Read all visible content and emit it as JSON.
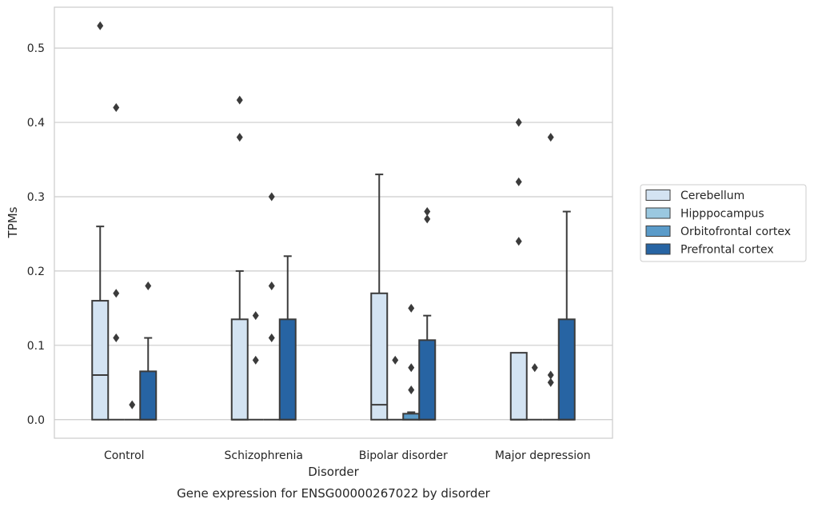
{
  "caption": "Gene expression for ENSG00000267022 by disorder",
  "chart_data": {
    "type": "box",
    "title": "",
    "xlabel": "Disorder",
    "ylabel": "TPMs",
    "ylim": [
      -0.025,
      0.555
    ],
    "yticks": [
      0.0,
      0.1,
      0.2,
      0.3,
      0.4,
      0.5
    ],
    "ytick_labels": [
      "0.0",
      "0.1",
      "0.2",
      "0.3",
      "0.4",
      "0.5"
    ],
    "grid": "horizontal",
    "legend_position": "right",
    "categories": [
      "Control",
      "Schizophrenia",
      "Bipolar disorder",
      "Major depression"
    ],
    "series": [
      {
        "name": "Cerebellum",
        "color": "#d3e3f2",
        "boxes": [
          {
            "q1": 0.0,
            "median": 0.06,
            "q3": 0.16,
            "whislo": 0.0,
            "whishi": 0.26,
            "fliers": [
              0.53
            ]
          },
          {
            "q1": 0.0,
            "median": 0.0,
            "q3": 0.135,
            "whislo": 0.0,
            "whishi": 0.2,
            "fliers": [
              0.38,
              0.43
            ]
          },
          {
            "q1": 0.0,
            "median": 0.02,
            "q3": 0.17,
            "whislo": 0.0,
            "whishi": 0.33,
            "fliers": []
          },
          {
            "q1": 0.0,
            "median": 0.0,
            "q3": 0.09,
            "whislo": 0.0,
            "whishi": 0.09,
            "fliers": [
              0.24,
              0.32,
              0.4
            ]
          }
        ]
      },
      {
        "name": "Hipppocampus",
        "color": "#9ac8e0",
        "boxes": [
          {
            "q1": 0.0,
            "median": 0.0,
            "q3": 0.0,
            "whislo": 0.0,
            "whishi": 0.0,
            "fliers": [
              0.11,
              0.17,
              0.42
            ]
          },
          {
            "q1": 0.0,
            "median": 0.0,
            "q3": 0.0,
            "whislo": 0.0,
            "whishi": 0.0,
            "fliers": [
              0.08,
              0.14
            ]
          },
          {
            "q1": 0.0,
            "median": 0.0,
            "q3": 0.0,
            "whislo": 0.0,
            "whishi": 0.0,
            "fliers": [
              0.08
            ]
          },
          {
            "q1": 0.0,
            "median": 0.0,
            "q3": 0.0,
            "whislo": 0.0,
            "whishi": 0.0,
            "fliers": [
              0.07
            ]
          }
        ]
      },
      {
        "name": "Orbitofrontal cortex",
        "color": "#5a9bc9",
        "boxes": [
          {
            "q1": 0.0,
            "median": 0.0,
            "q3": 0.0,
            "whislo": 0.0,
            "whishi": 0.0,
            "fliers": [
              0.02
            ]
          },
          {
            "q1": 0.0,
            "median": 0.0,
            "q3": 0.0,
            "whislo": 0.0,
            "whishi": 0.0,
            "fliers": [
              0.11,
              0.18,
              0.3
            ]
          },
          {
            "q1": 0.0,
            "median": 0.0,
            "q3": 0.008,
            "whislo": 0.0,
            "whishi": 0.01,
            "fliers": [
              0.04,
              0.07,
              0.15
            ]
          },
          {
            "q1": 0.0,
            "median": 0.0,
            "q3": 0.0,
            "whislo": 0.0,
            "whishi": 0.0,
            "fliers": [
              0.05,
              0.06,
              0.38
            ]
          }
        ]
      },
      {
        "name": "Prefrontal cortex",
        "color": "#2764a3",
        "boxes": [
          {
            "q1": 0.0,
            "median": 0.0,
            "q3": 0.065,
            "whislo": 0.0,
            "whishi": 0.11,
            "fliers": [
              0.18
            ]
          },
          {
            "q1": 0.0,
            "median": 0.0,
            "q3": 0.135,
            "whislo": 0.0,
            "whishi": 0.22,
            "fliers": []
          },
          {
            "q1": 0.0,
            "median": 0.0,
            "q3": 0.107,
            "whislo": 0.0,
            "whishi": 0.14,
            "fliers": [
              0.27,
              0.28
            ]
          },
          {
            "q1": 0.0,
            "median": 0.0,
            "q3": 0.135,
            "whislo": 0.0,
            "whishi": 0.28,
            "fliers": []
          }
        ]
      }
    ]
  }
}
